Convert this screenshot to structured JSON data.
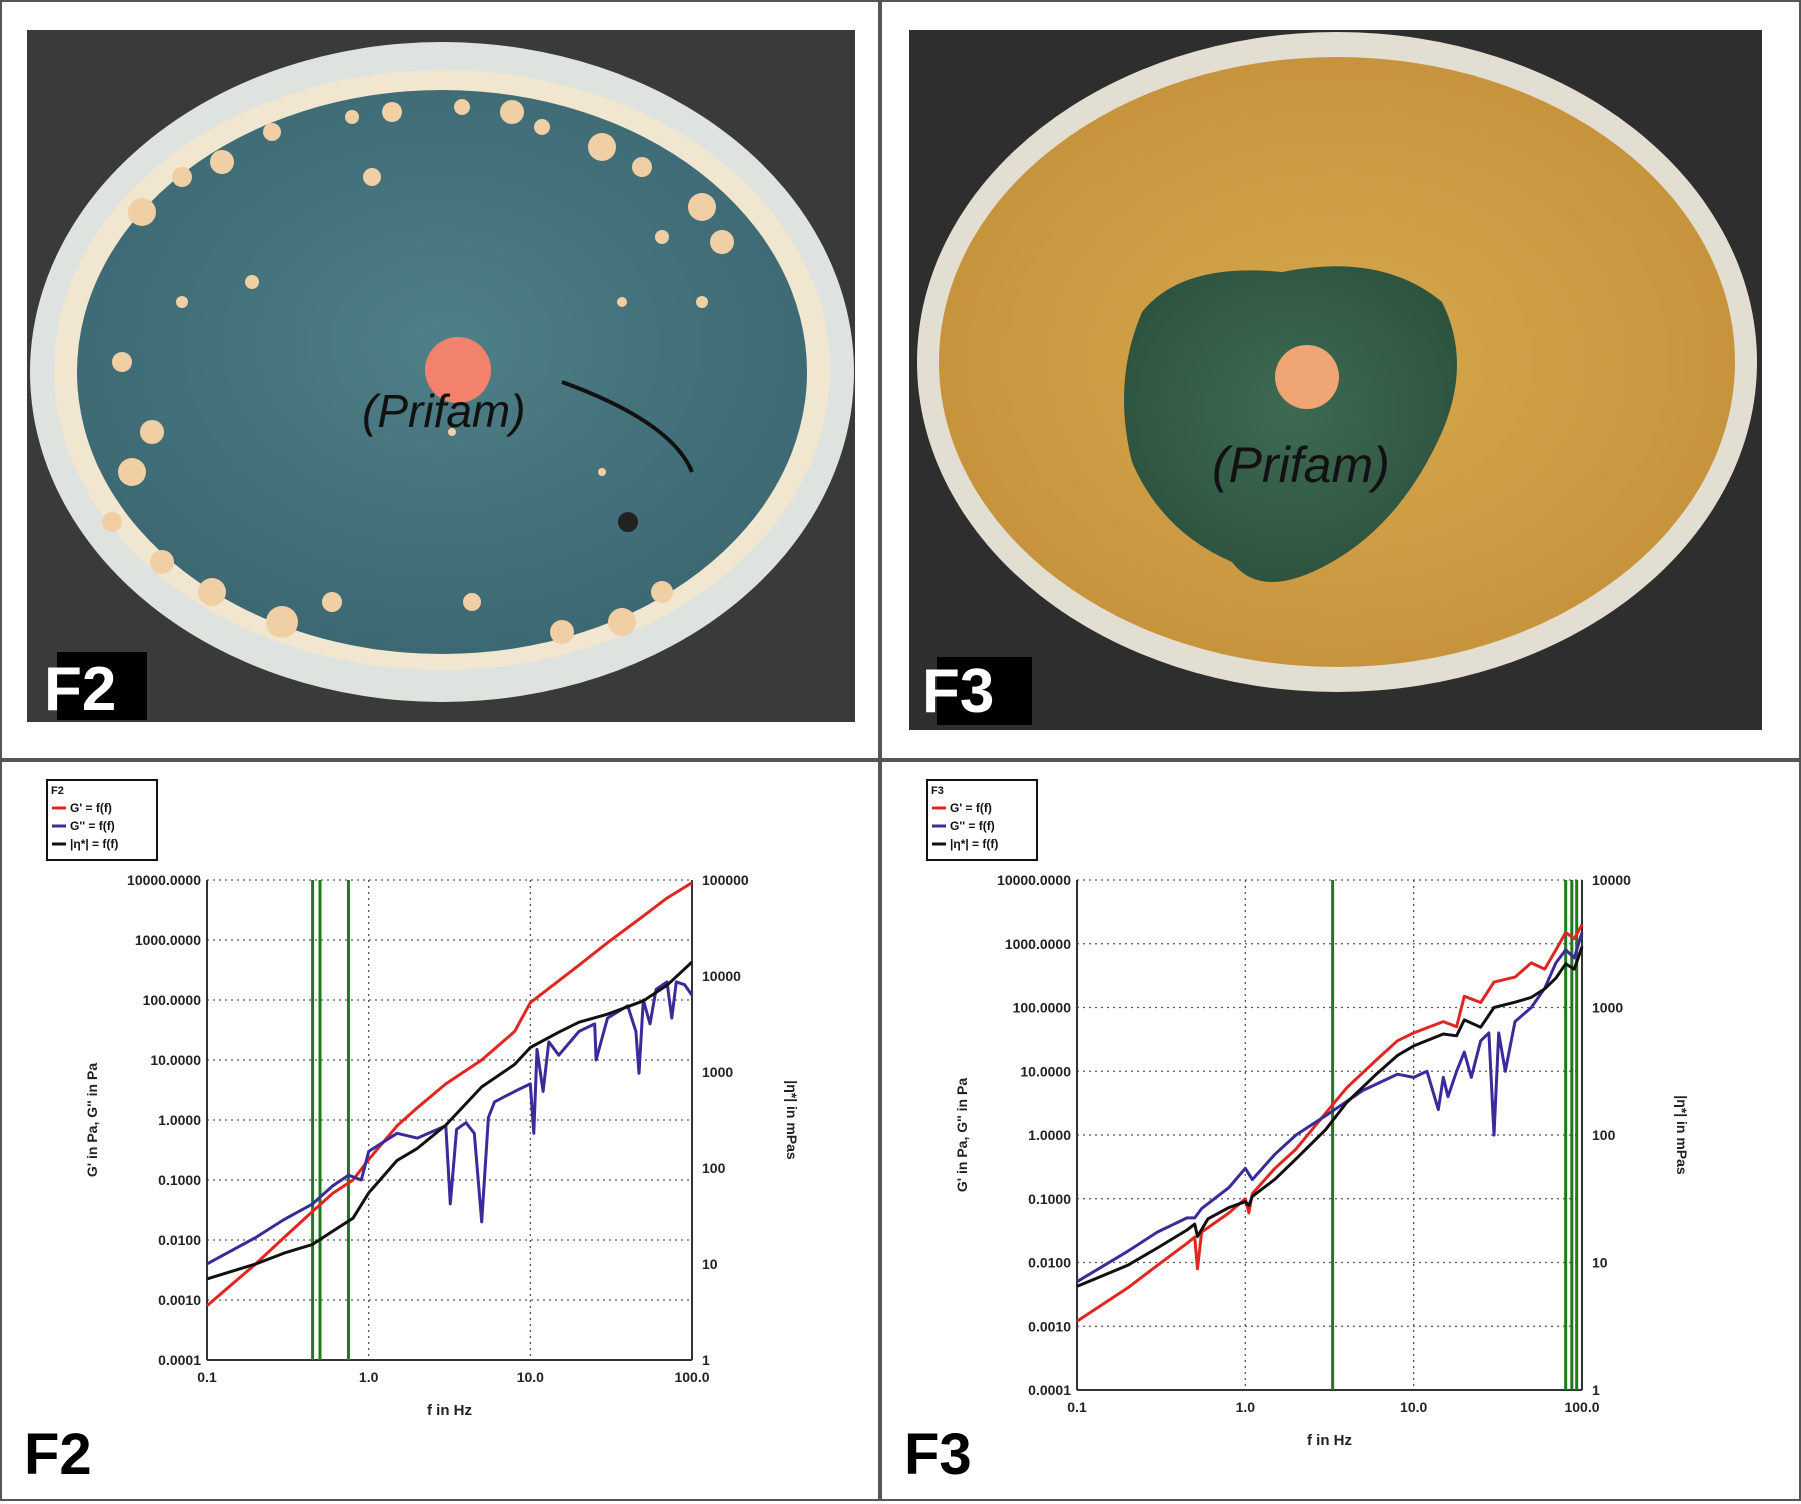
{
  "panels": {
    "top_left": {
      "label": "F2",
      "plate_text": "(Prifam)"
    },
    "top_right": {
      "label": "F3",
      "plate_text": "(Prifam)"
    },
    "bottom_left": {
      "label": "F2"
    },
    "bottom_right": {
      "label": "F3"
    }
  },
  "colors": {
    "storage_modulus": "#e0261f",
    "loss_modulus": "#3b2a9a",
    "complex_viscosity": "#111111",
    "vertical_markers": "#1f7a1f",
    "grid": "#555555"
  },
  "chart_data": [
    {
      "type": "line",
      "legend_title": "F2",
      "legend": [
        "G' = f(f)",
        "G'' = f(f)",
        "|η*| = f(f)"
      ],
      "xlabel": "f in Hz",
      "ylabel": "G' in Pa, G'' in Pa",
      "y2label": "|η*| in mPas",
      "xscale": "log",
      "yscale": "log",
      "y2scale": "log",
      "xlim": [
        0.1,
        100
      ],
      "ylim": [
        0.0001,
        10000
      ],
      "y2lim": [
        1,
        100000
      ],
      "x_ticks": [
        "0.1",
        "1.0",
        "10.0",
        "100.0"
      ],
      "y_ticks": [
        "0.0001",
        "0.0010",
        "0.0100",
        "0.1000",
        "1.0000",
        "10.0000",
        "100.0000",
        "1000.0000",
        "10000.0000"
      ],
      "y2_ticks": [
        "1",
        "10",
        "100",
        "1000",
        "10000",
        "100000"
      ],
      "vertical_lines_x": [
        0.45,
        0.5,
        0.75
      ],
      "grid": true,
      "series": [
        {
          "name": "G'",
          "axis": "left",
          "x": [
            0.1,
            0.2,
            0.3,
            0.45,
            0.6,
            0.8,
            1.0,
            1.5,
            2,
            3,
            5,
            8,
            10,
            20,
            30,
            50,
            70,
            100
          ],
          "y": [
            0.0008,
            0.004,
            0.011,
            0.03,
            0.06,
            0.1,
            0.22,
            0.8,
            1.6,
            4,
            10,
            30,
            90,
            380,
            900,
            2500,
            5000,
            9000
          ]
        },
        {
          "name": "G''",
          "axis": "left",
          "x": [
            0.1,
            0.2,
            0.3,
            0.45,
            0.6,
            0.75,
            0.9,
            1.0,
            1.5,
            2.0,
            3.0,
            3.2,
            3.5,
            4.0,
            4.5,
            5.0,
            5.5,
            6.0,
            8.0,
            10.0,
            10.5,
            11.0,
            12.0,
            13.0,
            15.0,
            20.0,
            25.0,
            25.5,
            30.0,
            40.0,
            45.0,
            47.0,
            50.0,
            55.0,
            60.0,
            70.0,
            75.0,
            80.0,
            90.0,
            100.0
          ],
          "y": [
            0.004,
            0.011,
            0.022,
            0.04,
            0.08,
            0.12,
            0.1,
            0.3,
            0.6,
            0.5,
            0.8,
            0.04,
            0.7,
            0.9,
            0.6,
            0.02,
            1.1,
            2.0,
            3.0,
            4.0,
            0.6,
            15,
            3,
            20,
            12,
            30,
            40,
            10,
            50,
            80,
            30,
            6,
            100,
            40,
            150,
            200,
            50,
            200,
            180,
            120
          ]
        },
        {
          "name": "|η*|",
          "axis": "right",
          "x": [
            0.1,
            0.2,
            0.3,
            0.45,
            0.5,
            0.6,
            0.8,
            1.0,
            1.5,
            2.0,
            3.0,
            5.0,
            8.0,
            10.0,
            15.0,
            20.0,
            30.0,
            50.0,
            70.0,
            100.0
          ],
          "y": [
            7,
            10,
            13,
            16,
            18,
            22,
            30,
            55,
            120,
            160,
            280,
            700,
            1200,
            1800,
            2600,
            3300,
            4000,
            5500,
            8000,
            14000
          ]
        }
      ]
    },
    {
      "type": "line",
      "legend_title": "F3",
      "legend": [
        "G' = f(f)",
        "G'' = f(f)",
        "|η*| = f(f)"
      ],
      "xlabel": "f in Hz",
      "ylabel": "G' in Pa, G'' in Pa",
      "y2label": "|η*| in mPas",
      "xscale": "log",
      "yscale": "log",
      "y2scale": "log",
      "xlim": [
        0.1,
        100
      ],
      "ylim": [
        0.0001,
        10000
      ],
      "y2lim": [
        1,
        10000
      ],
      "x_ticks": [
        "0.1",
        "1.0",
        "10.0",
        "100.0"
      ],
      "y_ticks": [
        "0.0001",
        "0.0010",
        "0.0100",
        "0.1000",
        "1.0000",
        "10.0000",
        "100.0000",
        "1000.0000",
        "10000.0000"
      ],
      "y2_ticks": [
        "1",
        "10",
        "100",
        "1000",
        "10000"
      ],
      "vertical_lines_x": [
        3.3,
        80,
        87,
        93
      ],
      "grid": true,
      "series": [
        {
          "name": "G'",
          "axis": "left",
          "x": [
            0.1,
            0.2,
            0.3,
            0.45,
            0.5,
            0.52,
            0.55,
            0.8,
            1.0,
            1.05,
            1.1,
            1.5,
            2.0,
            3.0,
            4.0,
            6.0,
            8.0,
            10.0,
            15.0,
            18.0,
            20.0,
            25.0,
            30.0,
            40.0,
            50.0,
            60.0,
            70.0,
            80.0,
            90.0,
            100.0
          ],
          "y": [
            0.0012,
            0.004,
            0.009,
            0.02,
            0.025,
            0.008,
            0.03,
            0.06,
            0.1,
            0.06,
            0.12,
            0.3,
            0.6,
            2.2,
            5.5,
            15,
            30,
            40,
            60,
            50,
            150,
            120,
            250,
            300,
            500,
            400,
            800,
            1500,
            1200,
            2000
          ]
        },
        {
          "name": "G''",
          "axis": "left",
          "x": [
            0.1,
            0.2,
            0.3,
            0.45,
            0.5,
            0.55,
            0.8,
            1.0,
            1.1,
            1.5,
            2.0,
            3.0,
            5.0,
            8.0,
            10.0,
            12.0,
            14.0,
            15.0,
            16.0,
            18.0,
            20.0,
            22.0,
            25.0,
            28.0,
            30.0,
            32.0,
            35.0,
            40.0,
            50.0,
            60.0,
            70.0,
            80.0,
            90.0,
            100.0
          ],
          "y": [
            0.005,
            0.015,
            0.03,
            0.05,
            0.05,
            0.07,
            0.15,
            0.3,
            0.2,
            0.5,
            1.0,
            2.0,
            5.0,
            9.0,
            8.0,
            10,
            2.5,
            8.0,
            4.0,
            10,
            20,
            8,
            30,
            40,
            1.0,
            40,
            10,
            60,
            100,
            200,
            500,
            800,
            600,
            1500
          ]
        },
        {
          "name": "|η*|",
          "axis": "right",
          "x": [
            0.1,
            0.2,
            0.3,
            0.45,
            0.5,
            0.52,
            0.6,
            0.8,
            1.0,
            1.05,
            1.1,
            1.5,
            2.0,
            3.0,
            4.0,
            6.0,
            8.0,
            10.0,
            15.0,
            18.0,
            20.0,
            25.0,
            30.0,
            40.0,
            50.0,
            60.0,
            70.0,
            80.0,
            90.0,
            100.0
          ],
          "y": [
            6.5,
            9.5,
            13,
            18,
            20,
            16,
            22,
            27,
            30,
            28,
            33,
            45,
            65,
            110,
            180,
            300,
            420,
            500,
            620,
            600,
            800,
            700,
            1000,
            1100,
            1200,
            1400,
            1700,
            2200,
            2000,
            3000
          ]
        }
      ]
    }
  ]
}
